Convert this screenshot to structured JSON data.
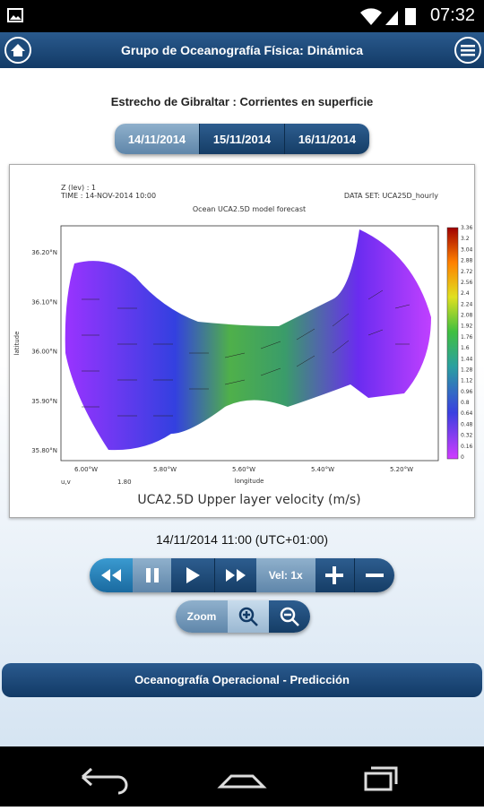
{
  "status_bar": {
    "time": "07:32"
  },
  "header": {
    "title": "Grupo de Oceanografía Física: Dinámica"
  },
  "map_title": "Estrecho de Gibraltar : Corrientes en superficie",
  "date_tabs": [
    "14/11/2014",
    "15/11/2014",
    "16/11/2014"
  ],
  "plot": {
    "meta_left": [
      "Z (lev) : 1",
      "TIME : 14-NOV-2014 10:00"
    ],
    "meta_right": "DATA SET: UCA25D_hourly",
    "subtitle": "Ocean UCA2.5D model forecast",
    "latitude_labels": [
      "36.20°N",
      "36.10°N",
      "36.00°N",
      "35.90°N",
      "35.80°N"
    ],
    "longitude_labels": [
      "6.00°W",
      "5.80°W",
      "5.60°W",
      "5.40°W",
      "5.20°W"
    ],
    "colorbar_labels": [
      "3.36",
      "3.2",
      "3.04",
      "2.88",
      "2.72",
      "2.56",
      "2.4",
      "2.24",
      "2.08",
      "1.92",
      "1.76",
      "1.6",
      "1.44",
      "1.28",
      "1.12",
      "0.96",
      "0.8",
      "0.64",
      "0.48",
      "0.32",
      "0.16",
      "0"
    ],
    "x_label": "longitude",
    "y_label": "latitude",
    "vector_key": "u,v",
    "vector_ref": "1.80",
    "title": "UCA2.5D Upper layer velocity (m/s)"
  },
  "timestamp": "14/11/2014 11:00 (UTC+01:00)",
  "controls": {
    "speed": "Vel: 1x",
    "zoom": "Zoom"
  },
  "footer": "Oceanografía Operacional - Predicción"
}
